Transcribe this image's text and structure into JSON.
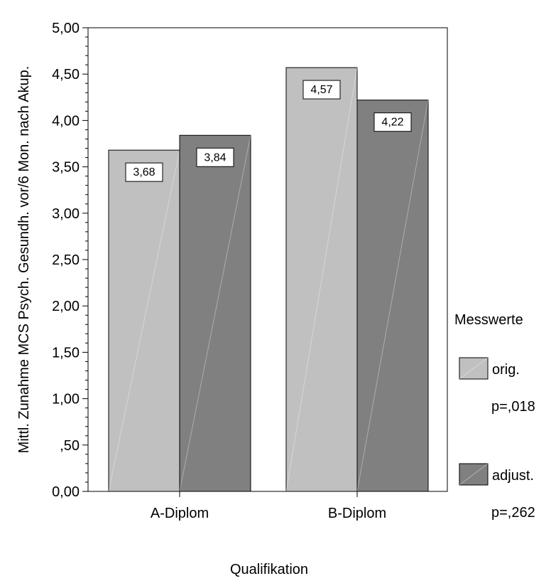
{
  "chart_data": {
    "type": "bar",
    "title": "",
    "xlabel": "Qualifikation",
    "ylabel": "Mittl. Zunahme MCS Psych. Gesundh. vor/6 Mon. nach Akup.",
    "categories": [
      "A-Diplom",
      "B-Diplom"
    ],
    "series": [
      {
        "name": "orig.",
        "values": [
          3.68,
          4.57
        ],
        "labels": [
          "3,68",
          "4,57"
        ],
        "color": "#c0c0c0",
        "note": "p=,018"
      },
      {
        "name": "adjust.",
        "values": [
          3.84,
          4.22
        ],
        "labels": [
          "3,84",
          "4,22"
        ],
        "color": "#808080",
        "note": "p=,262"
      }
    ],
    "ylim": [
      0,
      5
    ],
    "yticks": [
      {
        "value": 0,
        "label": "0,00"
      },
      {
        "value": 0.5,
        "label": ",50"
      },
      {
        "value": 1.0,
        "label": "1,00"
      },
      {
        "value": 1.5,
        "label": "1,50"
      },
      {
        "value": 2.0,
        "label": "2,00"
      },
      {
        "value": 2.5,
        "label": "2,50"
      },
      {
        "value": 3.0,
        "label": "3,00"
      },
      {
        "value": 3.5,
        "label": "3,50"
      },
      {
        "value": 4.0,
        "label": "4,00"
      },
      {
        "value": 4.5,
        "label": "4,50"
      },
      {
        "value": 5.0,
        "label": "5,00"
      }
    ],
    "grid": false,
    "legend": {
      "title": "Messwerte",
      "position": "right"
    }
  }
}
